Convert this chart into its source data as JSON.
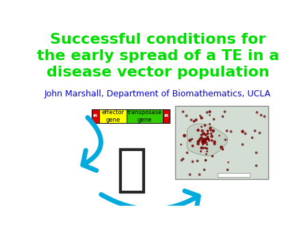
{
  "title_line1": "Successful conditions for",
  "title_line2": "the early spread of a TE in a",
  "title_line3": "disease vector population",
  "title_color": "#00dd00",
  "subtitle": "John Marshall, Department of Biomathematics, UCLA",
  "subtitle_color": "#0000cc",
  "background_color": "#ffffff",
  "gene_box": {
    "ir_color": "#dd0000",
    "effector_color": "#ffff00",
    "transposase_color": "#33cc00",
    "ir_label": "IR",
    "effector_label": "effector\ngene",
    "transposase_label": "transposase\ngene"
  },
  "arrow_color": "#00aadd",
  "title_fontsize": 16,
  "subtitle_fontsize": 9,
  "gene_label_fontsize": 6
}
